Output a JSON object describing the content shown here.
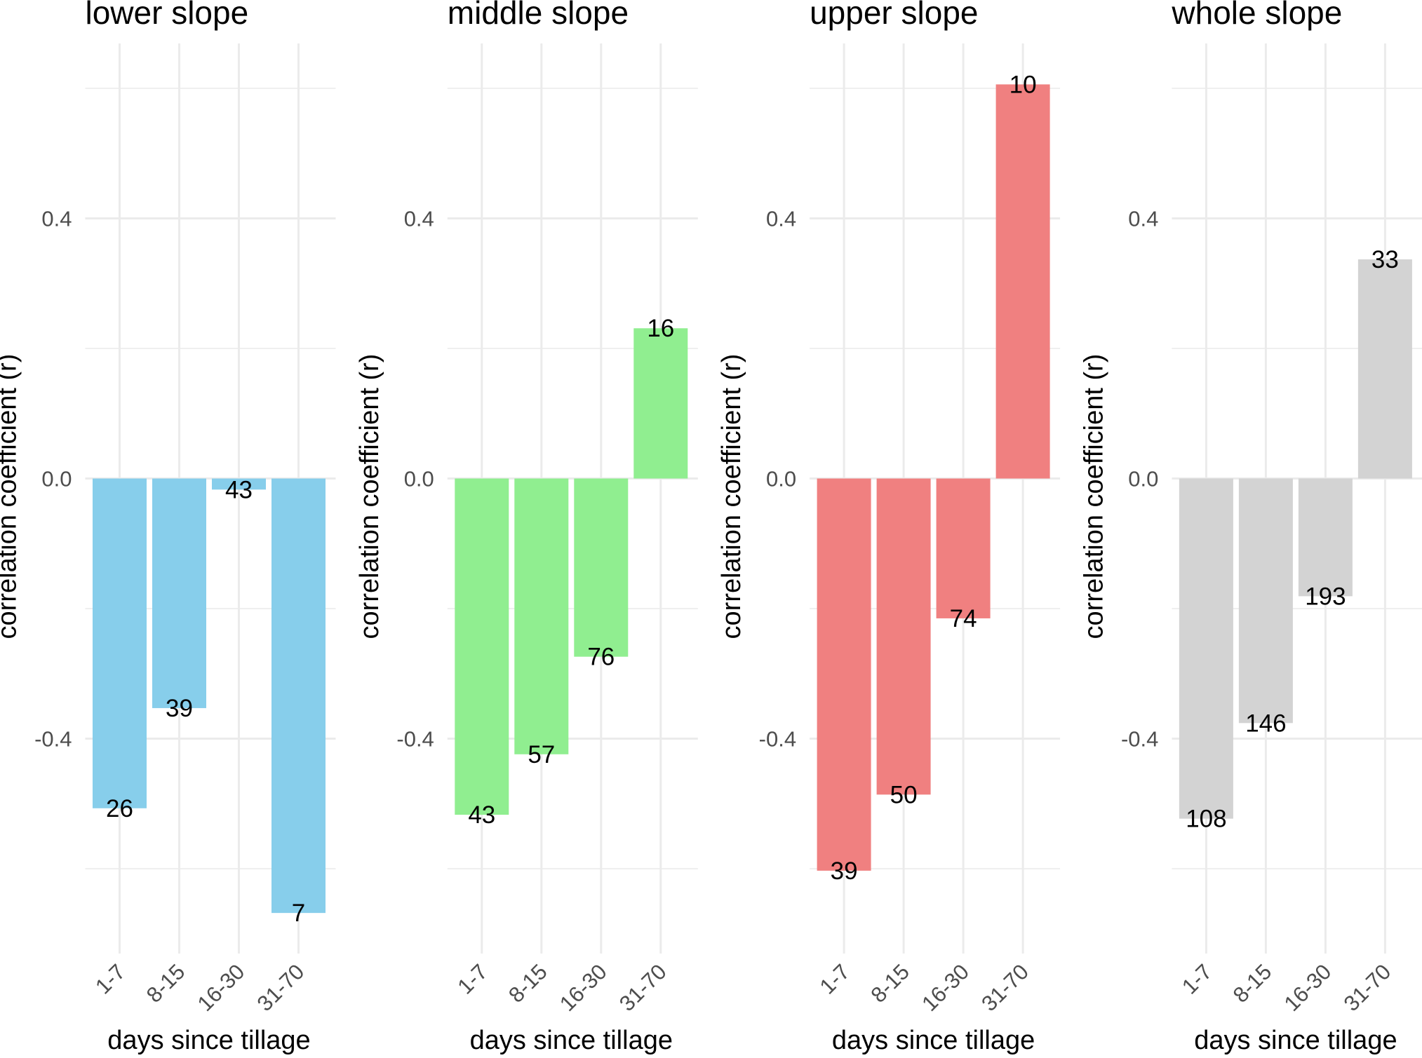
{
  "chart_data": {
    "type": "bar",
    "layout": "facets-1x4",
    "categories": [
      "1-7",
      "8-15",
      "16-30",
      "31-70"
    ],
    "xlabel": "days since tillage",
    "ylabel": "correlation coefficient (r)",
    "ylim": [
      -0.7,
      0.67
    ],
    "yticks": [
      -0.4,
      0.0,
      0.4
    ],
    "ytick_labels": [
      "-0.4",
      "0.0",
      "0.4"
    ],
    "minor_gridlines": [
      -0.6,
      -0.2,
      0.2,
      0.6
    ],
    "grid": true,
    "legend": "none",
    "panels": [
      {
        "title": "lower slope",
        "color": "#87ceeb",
        "values": [
          -0.507,
          -0.353,
          -0.017,
          -0.668
        ],
        "labels": [
          "26",
          "39",
          "43",
          "7"
        ]
      },
      {
        "title": "middle slope",
        "color": "#90ee90",
        "values": [
          -0.517,
          -0.424,
          -0.274,
          0.231
        ],
        "labels": [
          "43",
          "57",
          "76",
          "16"
        ]
      },
      {
        "title": "upper slope",
        "color": "#f08080",
        "values": [
          -0.603,
          -0.486,
          -0.215,
          0.606
        ],
        "labels": [
          "39",
          "50",
          "74",
          "10"
        ]
      },
      {
        "title": "whole slope",
        "color": "#d3d3d3",
        "values": [
          -0.523,
          -0.376,
          -0.181,
          0.337
        ],
        "labels": [
          "108",
          "146",
          "193",
          "33"
        ]
      }
    ]
  }
}
